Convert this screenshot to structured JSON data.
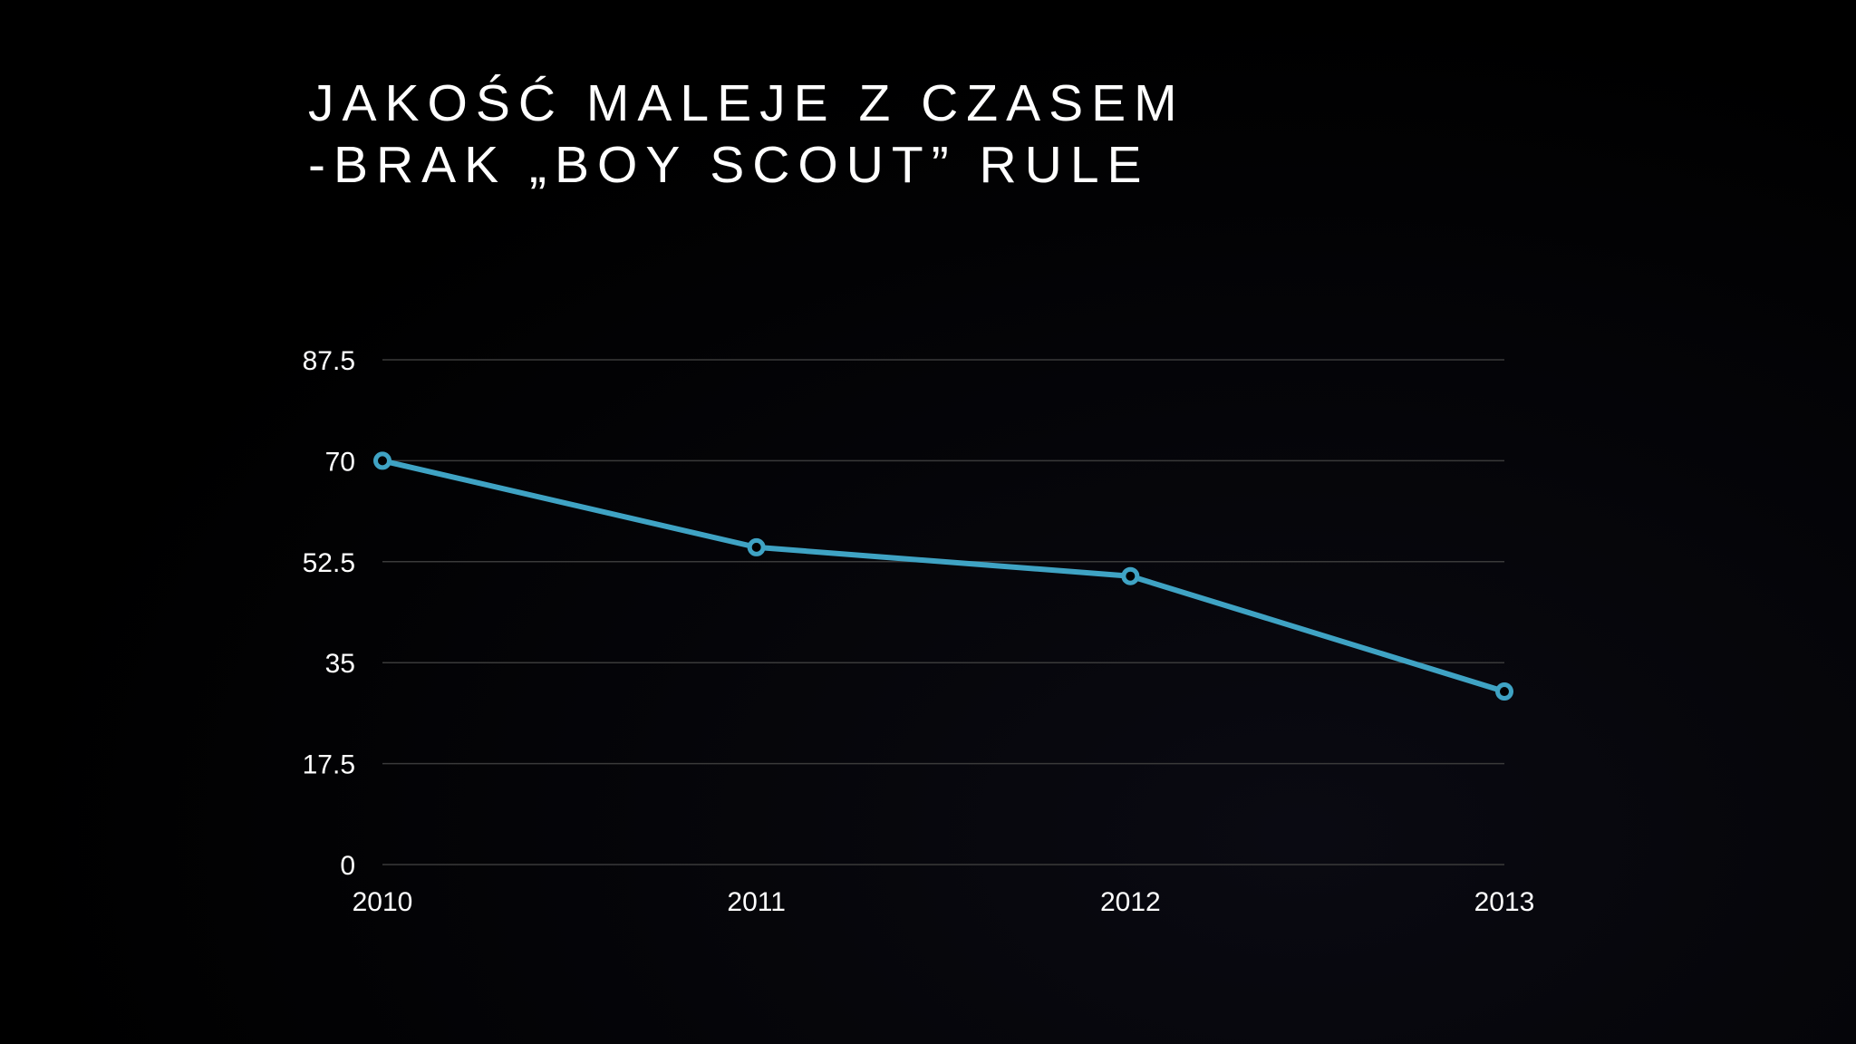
{
  "slide": {
    "title_line1": "JAKOŚĆ MALEJE Z CZASEM",
    "title_line2": "-BRAK „BOY SCOUT” RULE"
  },
  "chart_data": {
    "type": "line",
    "title": "",
    "xlabel": "",
    "ylabel": "",
    "categories": [
      "2010",
      "2011",
      "2012",
      "2013"
    ],
    "series": [
      {
        "values": [
          70,
          55,
          50,
          30
        ],
        "color": "#3fa3c4"
      }
    ],
    "yticks": [
      0,
      17.5,
      35,
      52.5,
      70,
      87.5
    ],
    "ytick_labels": [
      "0",
      "17.5",
      "35",
      "52.5",
      "70",
      "87.5"
    ],
    "ylim": [
      0,
      87.5
    ],
    "grid": true,
    "legend": "none",
    "gridline_color": "#3a3a3a"
  }
}
